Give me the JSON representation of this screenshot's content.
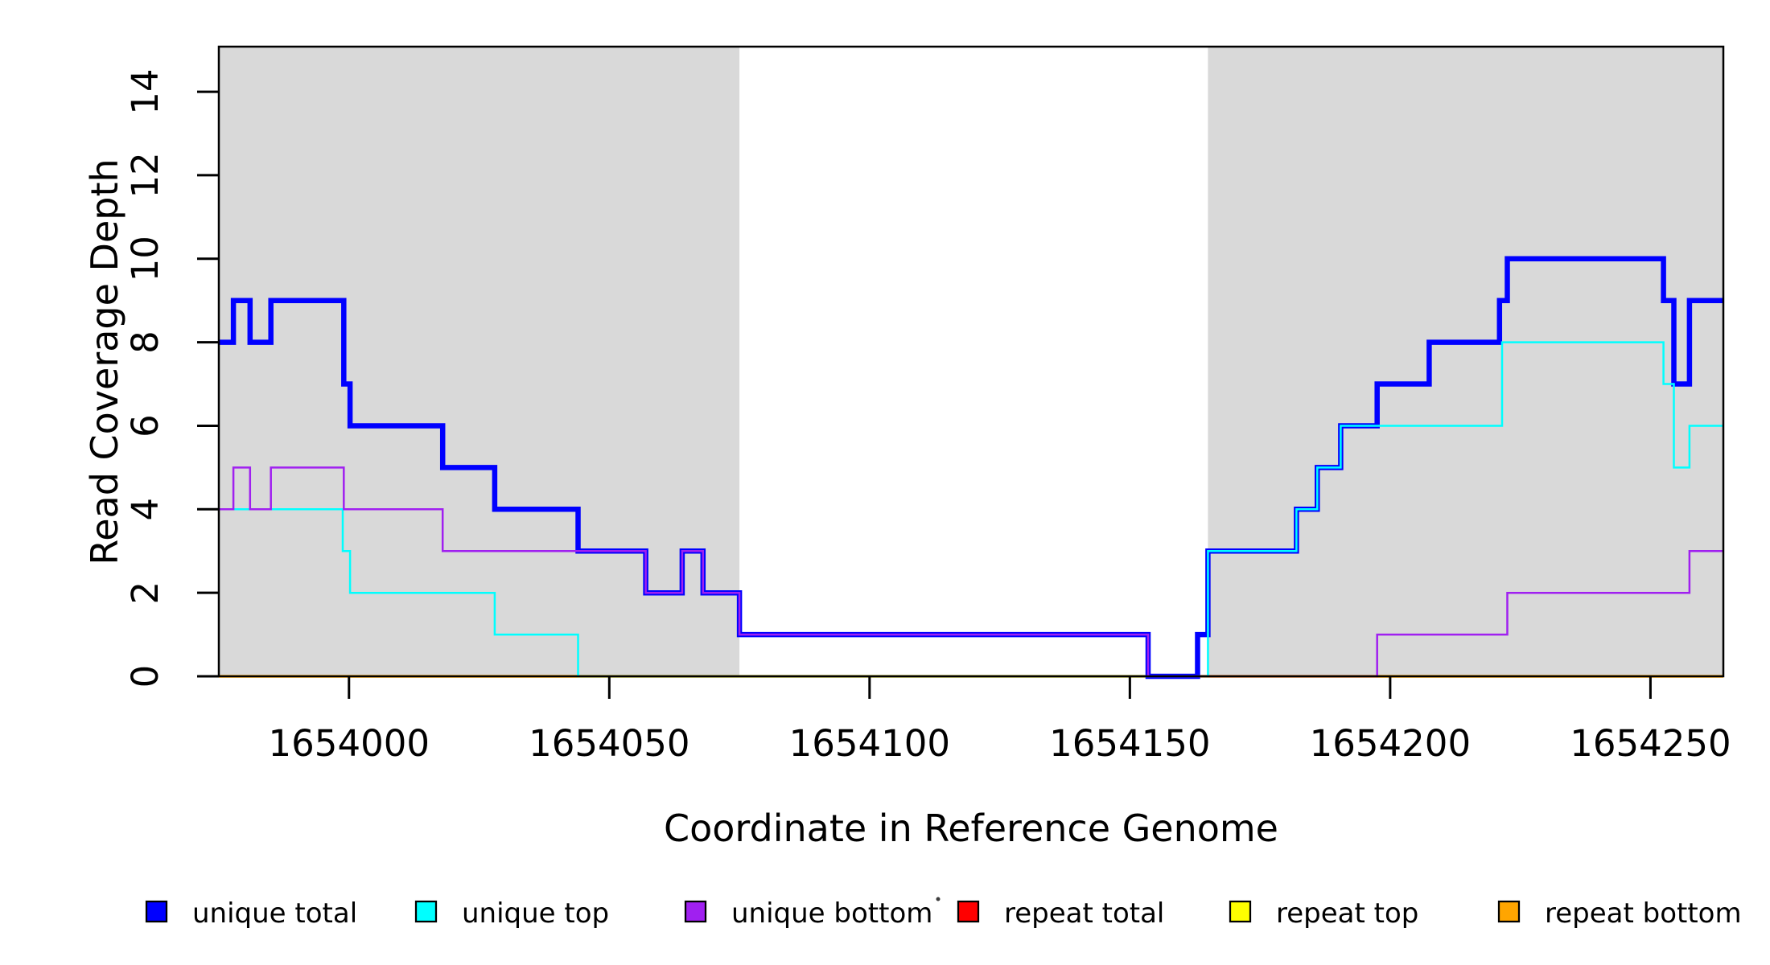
{
  "chart_data": {
    "type": "line",
    "step": true,
    "title": "",
    "xlabel": "Coordinate in Reference Genome",
    "ylabel": "Read Coverage Depth",
    "xlim": [
      1653975,
      1654264
    ],
    "ylim": [
      0,
      15.08
    ],
    "xticks": [
      1654000,
      1654050,
      1654100,
      1654150,
      1654200,
      1654250
    ],
    "yticks": [
      0,
      2,
      4,
      6,
      8,
      10,
      12,
      14
    ],
    "grid": false,
    "legend_position": "bottom",
    "band_color": "#D9D9D9",
    "axis_color": "#000000",
    "shaded_bands": [
      {
        "from": 1653975,
        "to": 1654075
      },
      {
        "from": 1654165,
        "to": 1654264
      }
    ],
    "series": [
      {
        "name": "repeat total",
        "color": "#FF0000",
        "width": 3,
        "points": [
          [
            1653975,
            0
          ]
        ]
      },
      {
        "name": "repeat top",
        "color": "#FFFF00",
        "width": 3,
        "points": [
          [
            1653975,
            0
          ]
        ]
      },
      {
        "name": "repeat bottom",
        "color": "#FFA500",
        "width": 3.5,
        "points": [
          [
            1653975,
            0
          ]
        ]
      },
      {
        "name": "unique total",
        "color": "#0000FF",
        "width": 6.5,
        "points": [
          [
            1653975,
            8
          ],
          [
            1653977.8,
            9
          ],
          [
            1653981,
            8
          ],
          [
            1653985,
            9
          ],
          [
            1653999,
            7
          ],
          [
            1654000.2,
            6
          ],
          [
            1654018,
            5
          ],
          [
            1654028,
            4
          ],
          [
            1654044,
            3
          ],
          [
            1654057,
            2
          ],
          [
            1654064,
            3
          ],
          [
            1654068,
            2
          ],
          [
            1654075,
            1
          ],
          [
            1654153.5,
            0
          ],
          [
            1654163,
            1
          ],
          [
            1654165,
            3
          ],
          [
            1654182,
            4
          ],
          [
            1654186,
            5
          ],
          [
            1654190.5,
            6
          ],
          [
            1654197.5,
            7
          ],
          [
            1654207.5,
            8
          ],
          [
            1654221,
            9
          ],
          [
            1654222.5,
            10
          ],
          [
            1654252.5,
            9
          ],
          [
            1654254.5,
            7
          ],
          [
            1654257.5,
            9
          ]
        ]
      },
      {
        "name": "unique top",
        "color": "#00FFFF",
        "width": 2.5,
        "points": [
          [
            1653975,
            4
          ],
          [
            1653998.8,
            3
          ],
          [
            1654000.2,
            2
          ],
          [
            1654028,
            1
          ],
          [
            1654044,
            0
          ],
          [
            1654165,
            3
          ],
          [
            1654182,
            4
          ],
          [
            1654186,
            5
          ],
          [
            1654190.5,
            6
          ],
          [
            1654221.5,
            8
          ],
          [
            1654252.5,
            7
          ],
          [
            1654254.5,
            5
          ],
          [
            1654257.5,
            6
          ]
        ]
      },
      {
        "name": "unique bottom",
        "color": "#A020F0",
        "width": 2.5,
        "points": [
          [
            1653975,
            4
          ],
          [
            1653977.8,
            5
          ],
          [
            1653981,
            4
          ],
          [
            1653985,
            5
          ],
          [
            1653999,
            4
          ],
          [
            1654018,
            3
          ],
          [
            1654057,
            2
          ],
          [
            1654064,
            3
          ],
          [
            1654068,
            2
          ],
          [
            1654075,
            1
          ],
          [
            1654153.5,
            0
          ],
          [
            1654197.5,
            1
          ],
          [
            1654222.5,
            2
          ],
          [
            1654257.5,
            3
          ]
        ]
      }
    ],
    "legend_items": [
      {
        "label": "unique total",
        "color": "#0000FF"
      },
      {
        "label": "unique top",
        "color": "#00FFFF"
      },
      {
        "label": "unique bottom",
        "color": "#A020F0"
      },
      {
        "label": "repeat total",
        "color": "#FF0000"
      },
      {
        "label": "repeat top",
        "color": "#FFFF00"
      },
      {
        "label": "repeat bottom",
        "color": "#FFA500"
      }
    ],
    "stray_dot": {
      "x": 1166,
      "y": 1118
    }
  }
}
